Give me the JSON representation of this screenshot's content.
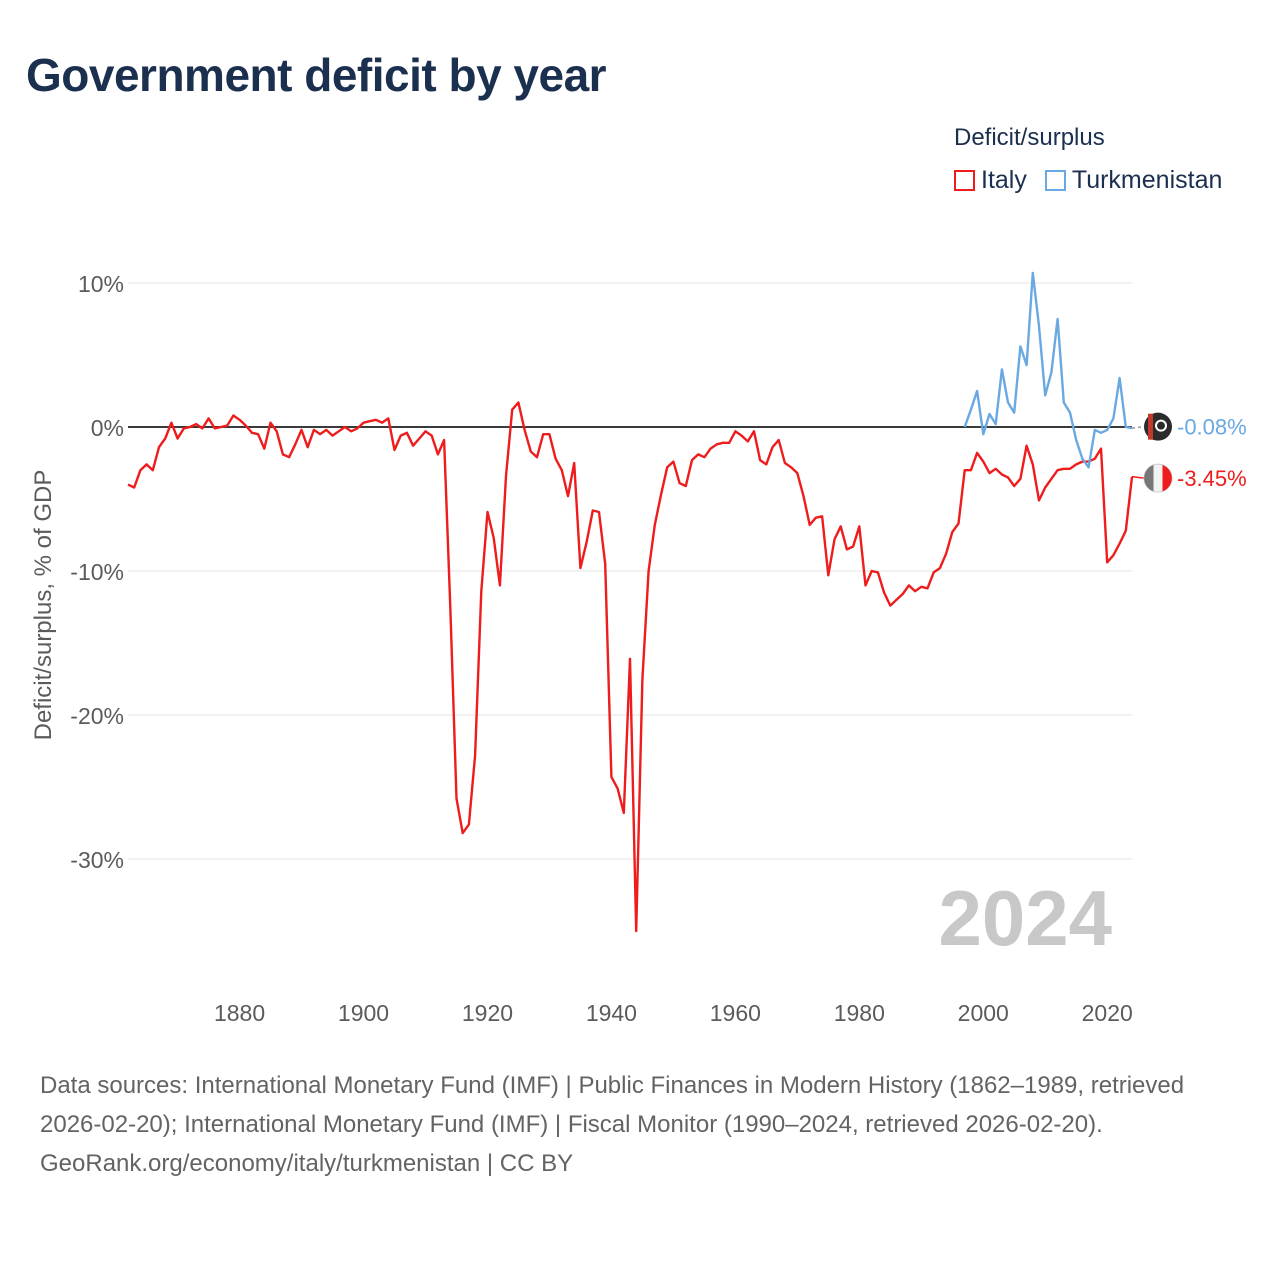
{
  "title": "Government deficit by year",
  "legend": {
    "title": "Deficit/surplus",
    "items": [
      {
        "name": "Italy",
        "color": "#ee1c1c"
      },
      {
        "name": "Turkmenistan",
        "color": "#6aa8e2"
      }
    ]
  },
  "year_label": "2024",
  "footer": {
    "sources": "Data sources: International Monetary Fund (IMF) | Public Finances in Modern History (1862–1989, retrieved 2026-02-20); International Monetary Fund (IMF) | Fiscal Monitor (1990–2024, retrieved 2026-02-20).",
    "credit": "GeoRank.org/economy/italy/turkmenistan | CC BY"
  },
  "chart_data": {
    "type": "line",
    "title": "Government deficit by year",
    "xlabel": "",
    "ylabel": "Deficit/surplus, % of GDP",
    "xlim": [
      1862,
      2024
    ],
    "ylim": [
      -38,
      12
    ],
    "x_ticks": [
      {
        "value": 1880,
        "label": "1880"
      },
      {
        "value": 1900,
        "label": "1900"
      },
      {
        "value": 1920,
        "label": "1920"
      },
      {
        "value": 1940,
        "label": "1940"
      },
      {
        "value": 1960,
        "label": "1960"
      },
      {
        "value": 1980,
        "label": "1980"
      },
      {
        "value": 2000,
        "label": "2000"
      },
      {
        "value": 2020,
        "label": "2020"
      }
    ],
    "y_ticks": [
      {
        "value": 10,
        "label": "10%"
      },
      {
        "value": 0,
        "label": "0%"
      },
      {
        "value": -10,
        "label": "-10%"
      },
      {
        "value": -20,
        "label": "-20%"
      },
      {
        "value": -30,
        "label": "-30%"
      }
    ],
    "grid": true,
    "legend_position": "top-right",
    "series": [
      {
        "name": "Italy",
        "color": "#ee1c1c",
        "end_label": "-3.45%",
        "x": [
          1862,
          1863,
          1864,
          1865,
          1866,
          1867,
          1868,
          1869,
          1870,
          1871,
          1872,
          1873,
          1874,
          1875,
          1876,
          1877,
          1878,
          1879,
          1880,
          1881,
          1882,
          1883,
          1884,
          1885,
          1886,
          1887,
          1888,
          1889,
          1890,
          1891,
          1892,
          1893,
          1894,
          1895,
          1896,
          1897,
          1898,
          1899,
          1900,
          1901,
          1902,
          1903,
          1904,
          1905,
          1906,
          1907,
          1908,
          1909,
          1910,
          1911,
          1912,
          1913,
          1914,
          1915,
          1916,
          1917,
          1918,
          1919,
          1920,
          1921,
          1922,
          1923,
          1924,
          1925,
          1926,
          1927,
          1928,
          1929,
          1930,
          1931,
          1932,
          1933,
          1934,
          1935,
          1936,
          1937,
          1938,
          1939,
          1940,
          1941,
          1942,
          1943,
          1944,
          1945,
          1946,
          1947,
          1948,
          1949,
          1950,
          1951,
          1952,
          1953,
          1954,
          1955,
          1956,
          1957,
          1958,
          1959,
          1960,
          1961,
          1962,
          1963,
          1964,
          1965,
          1966,
          1967,
          1968,
          1969,
          1970,
          1971,
          1972,
          1973,
          1974,
          1975,
          1976,
          1977,
          1978,
          1979,
          1980,
          1981,
          1982,
          1983,
          1984,
          1985,
          1986,
          1987,
          1988,
          1989,
          1990,
          1991,
          1992,
          1993,
          1994,
          1995,
          1996,
          1997,
          1998,
          1999,
          2000,
          2001,
          2002,
          2003,
          2004,
          2005,
          2006,
          2007,
          2008,
          2009,
          2010,
          2011,
          2012,
          2013,
          2014,
          2015,
          2016,
          2017,
          2018,
          2019,
          2020,
          2021,
          2022,
          2023,
          2024
        ],
        "y": [
          -4.0,
          -4.2,
          -3.0,
          -2.6,
          -3.0,
          -1.4,
          -0.8,
          0.3,
          -0.8,
          -0.1,
          0.0,
          0.2,
          -0.1,
          0.6,
          -0.1,
          0.0,
          0.1,
          0.8,
          0.5,
          0.1,
          -0.4,
          -0.5,
          -1.5,
          0.3,
          -0.3,
          -1.9,
          -2.1,
          -1.2,
          -0.2,
          -1.4,
          -0.2,
          -0.5,
          -0.2,
          -0.6,
          -0.3,
          0.0,
          -0.3,
          -0.1,
          0.3,
          0.4,
          0.5,
          0.3,
          0.6,
          -1.6,
          -0.6,
          -0.4,
          -1.3,
          -0.8,
          -0.3,
          -0.6,
          -1.9,
          -0.9,
          -12.5,
          -25.8,
          -28.2,
          -27.6,
          -22.8,
          -11.4,
          -5.9,
          -7.7,
          -11.0,
          -3.4,
          1.2,
          1.7,
          -0.2,
          -1.7,
          -2.1,
          -0.5,
          -0.5,
          -2.2,
          -3.0,
          -4.8,
          -2.5,
          -9.8,
          -8.0,
          -5.8,
          -5.9,
          -9.5,
          -24.3,
          -25.1,
          -26.8,
          -16.1,
          -35.0,
          -17.5,
          -10.0,
          -6.8,
          -4.7,
          -2.8,
          -2.4,
          -3.9,
          -4.1,
          -2.3,
          -1.9,
          -2.1,
          -1.5,
          -1.2,
          -1.1,
          -1.1,
          -0.3,
          -0.6,
          -1.0,
          -0.3,
          -2.3,
          -2.6,
          -1.4,
          -0.9,
          -2.5,
          -2.8,
          -3.2,
          -4.8,
          -6.8,
          -6.3,
          -6.2,
          -10.3,
          -7.8,
          -6.9,
          -8.5,
          -8.3,
          -6.9,
          -11.0,
          -10.0,
          -10.1,
          -11.5,
          -12.4,
          -12.0,
          -11.6,
          -11.0,
          -11.4,
          -11.1,
          -11.2,
          -10.1,
          -9.8,
          -8.8,
          -7.3,
          -6.7,
          -3.0,
          -3.0,
          -1.8,
          -2.4,
          -3.2,
          -2.9,
          -3.3,
          -3.5,
          -4.1,
          -3.6,
          -1.3,
          -2.6,
          -5.1,
          -4.2,
          -3.6,
          -3.0,
          -2.9,
          -2.9,
          -2.6,
          -2.4,
          -2.4,
          -2.2,
          -1.5,
          -9.4,
          -8.9,
          -8.1,
          -7.2,
          -3.45
        ]
      },
      {
        "name": "Turkmenistan",
        "color": "#6aa8e2",
        "end_label": "-0.08%",
        "x": [
          1997,
          1998,
          1999,
          2000,
          2001,
          2002,
          2003,
          2004,
          2005,
          2006,
          2007,
          2008,
          2009,
          2010,
          2011,
          2012,
          2013,
          2014,
          2015,
          2016,
          2017,
          2018,
          2019,
          2020,
          2021,
          2022,
          2023,
          2024
        ],
        "y": [
          0.0,
          1.2,
          2.5,
          -0.5,
          0.9,
          0.2,
          4.0,
          1.7,
          1.0,
          5.6,
          4.3,
          10.7,
          7.0,
          2.2,
          3.8,
          7.5,
          1.7,
          1.0,
          -0.9,
          -2.2,
          -2.8,
          -0.2,
          -0.4,
          -0.2,
          0.6,
          3.4,
          0.0,
          -0.08
        ]
      }
    ]
  }
}
